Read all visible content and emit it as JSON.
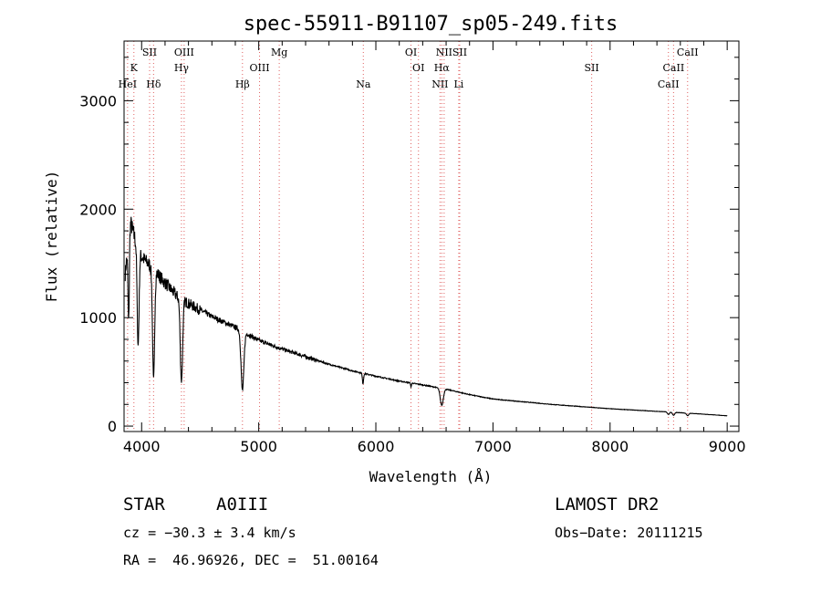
{
  "chart_data": {
    "type": "line",
    "title": "spec-55911-B91107_sp05-249.fits",
    "xlabel": "Wavelength (Å)",
    "ylabel": "Flux (relative)",
    "xlim": [
      3850,
      9100
    ],
    "ylim": [
      -50,
      3550
    ],
    "xticks": [
      4000,
      5000,
      6000,
      7000,
      8000,
      9000
    ],
    "yticks": [
      0,
      1000,
      2000,
      3000
    ],
    "continuum": [
      [
        3860,
        1400
      ],
      [
        3900,
        1900
      ],
      [
        3950,
        1700
      ],
      [
        4000,
        1560
      ],
      [
        4100,
        1450
      ],
      [
        4200,
        1320
      ],
      [
        4300,
        1200
      ],
      [
        4400,
        1130
      ],
      [
        4500,
        1070
      ],
      [
        4600,
        1010
      ],
      [
        4700,
        960
      ],
      [
        4800,
        910
      ],
      [
        4900,
        850
      ],
      [
        5000,
        790
      ],
      [
        5200,
        710
      ],
      [
        5400,
        640
      ],
      [
        5600,
        570
      ],
      [
        5800,
        510
      ],
      [
        6000,
        460
      ],
      [
        6200,
        415
      ],
      [
        6400,
        380
      ],
      [
        6600,
        340
      ],
      [
        6800,
        290
      ],
      [
        7000,
        250
      ],
      [
        7500,
        200
      ],
      [
        8000,
        160
      ],
      [
        8500,
        130
      ],
      [
        8800,
        110
      ],
      [
        9000,
        95
      ]
    ],
    "absorption_lines": [
      {
        "wave": 3889,
        "depth": 0.45,
        "width": 6
      },
      {
        "wave": 3970,
        "depth": 0.55,
        "width": 8
      },
      {
        "wave": 4102,
        "depth": 0.7,
        "width": 9
      },
      {
        "wave": 4340,
        "depth": 0.65,
        "width": 10
      },
      {
        "wave": 4861,
        "depth": 0.62,
        "width": 12
      },
      {
        "wave": 5890,
        "depth": 0.2,
        "width": 5
      },
      {
        "wave": 6300,
        "depth": 0.1,
        "width": 3
      },
      {
        "wave": 6563,
        "depth": 0.45,
        "width": 13
      },
      {
        "wave": 8498,
        "depth": 0.18,
        "width": 8
      },
      {
        "wave": 8542,
        "depth": 0.22,
        "width": 9
      },
      {
        "wave": 8662,
        "depth": 0.2,
        "width": 9
      }
    ],
    "spectral_lines": [
      {
        "label": "HeI",
        "wave": 3880,
        "row": 3
      },
      {
        "label": "K",
        "wave": 3934,
        "row": 2
      },
      {
        "label": "SII",
        "wave": 4068,
        "row": 1
      },
      {
        "label": "Hδ",
        "wave": 4102,
        "row": 3
      },
      {
        "label": "OIII",
        "wave": 4363,
        "row": 1
      },
      {
        "label": "Hγ",
        "wave": 4340,
        "row": 2
      },
      {
        "label": "Hβ",
        "wave": 4861,
        "row": 3
      },
      {
        "label": "OIII",
        "wave": 5007,
        "row": 2
      },
      {
        "label": "Mg",
        "wave": 5175,
        "row": 1
      },
      {
        "label": "Na",
        "wave": 5893,
        "row": 3
      },
      {
        "label": "OI",
        "wave": 6300,
        "row": 1
      },
      {
        "label": "OI",
        "wave": 6364,
        "row": 2
      },
      {
        "label": "NII",
        "wave": 6548,
        "row": 3
      },
      {
        "label": "Hα",
        "wave": 6563,
        "row": 2
      },
      {
        "label": "NII",
        "wave": 6583,
        "row": 1
      },
      {
        "label": "Li",
        "wave": 6708,
        "row": 3
      },
      {
        "label": "SII",
        "wave": 6716,
        "row": 1
      },
      {
        "label": "SII",
        "wave": 7843,
        "row": 2
      },
      {
        "label": "CaII",
        "wave": 8498,
        "row": 3
      },
      {
        "label": "CaII",
        "wave": 8542,
        "row": 2
      },
      {
        "label": "CaII",
        "wave": 8662,
        "row": 1
      }
    ],
    "colors": {
      "spectrum": "#000000",
      "marker": "#e06060"
    }
  },
  "info": {
    "object_class": "STAR",
    "subclass": "A0III",
    "survey": "LAMOST DR2",
    "redshift": "cz = −30.3 ± 3.4 km/s",
    "obs_date": "Obs−Date: 20111215",
    "coords": "RA =  46.96926, DEC =  51.00164"
  }
}
